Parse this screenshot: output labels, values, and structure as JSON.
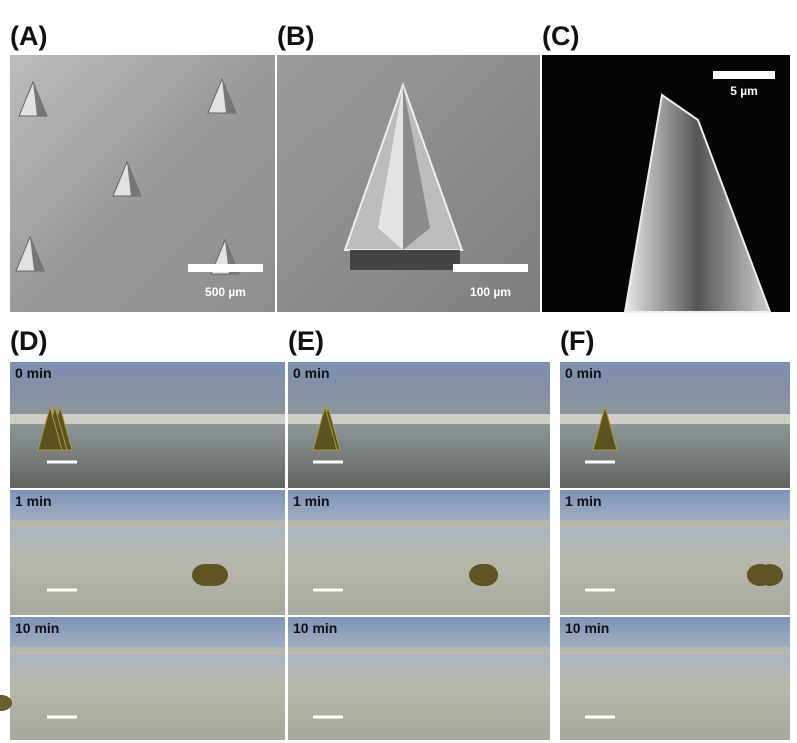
{
  "sem_panels": [
    {
      "label": "(A)",
      "scale_bar": "500 µm"
    },
    {
      "label": "(B)",
      "scale_bar": "100 µm"
    },
    {
      "label": "(C)",
      "scale_bar": "5 µm"
    }
  ],
  "dissolution_panels": [
    {
      "label": "(D)",
      "frames": [
        "0 min",
        "1 min",
        "10 min"
      ]
    },
    {
      "label": "(E)",
      "frames": [
        "0 min",
        "1 min",
        "10 min"
      ]
    },
    {
      "label": "(F)",
      "frames": [
        "0 min",
        "1 min",
        "10 min"
      ]
    }
  ]
}
